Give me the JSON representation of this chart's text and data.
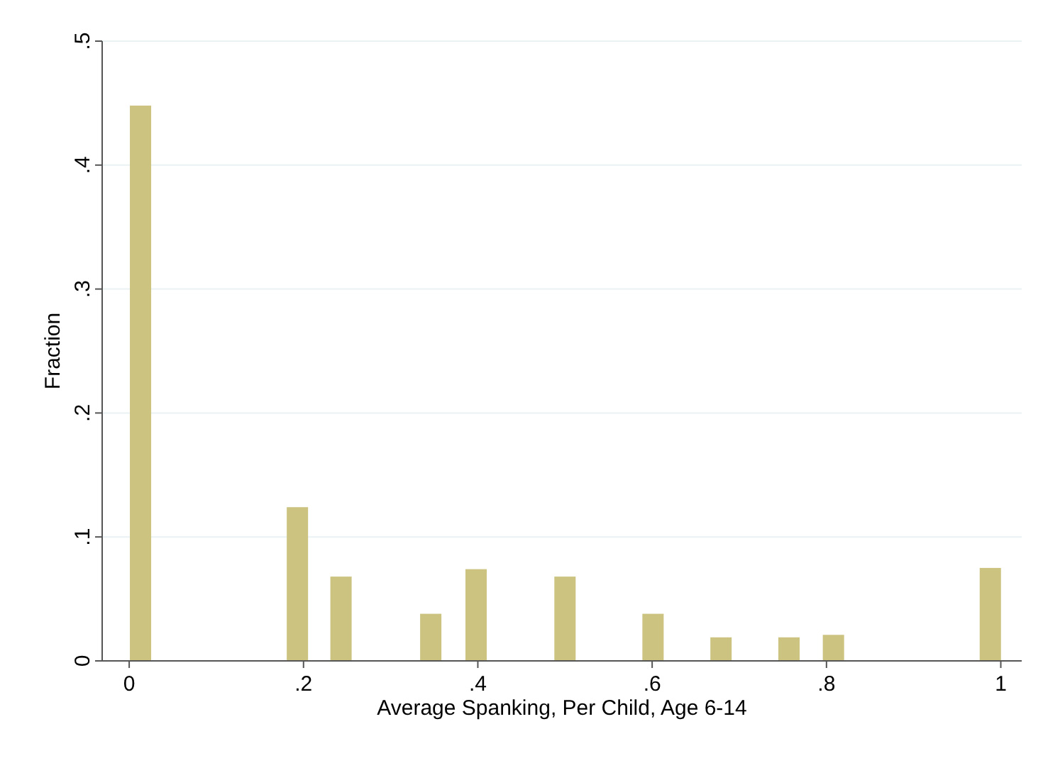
{
  "chart_data": {
    "type": "bar",
    "xlabel": "Average Spanking, Per Child, Age 6-14",
    "ylabel": "Fraction",
    "x": [
      0.013,
      0.193,
      0.243,
      0.346,
      0.398,
      0.5,
      0.601,
      0.679,
      0.757,
      0.808,
      0.988
    ],
    "values": [
      0.448,
      0.124,
      0.068,
      0.038,
      0.074,
      0.068,
      0.038,
      0.019,
      0.019,
      0.021,
      0.075
    ],
    "color": "#cbc37f",
    "xlim": [
      -0.031,
      1.024
    ],
    "xticks": [
      {
        "value": 0,
        "label": "0"
      },
      {
        "value": 0.2,
        "label": ".2"
      },
      {
        "value": 0.4,
        "label": ".4"
      },
      {
        "value": 0.6,
        "label": ".6"
      },
      {
        "value": 0.8,
        "label": ".8"
      },
      {
        "value": 1,
        "label": "1"
      }
    ],
    "ylim": [
      0,
      0.5
    ],
    "yticks": [
      {
        "value": 0,
        "label": "0"
      },
      {
        "value": 0.1,
        "label": ".1"
      },
      {
        "value": 0.2,
        "label": ".2"
      },
      {
        "value": 0.3,
        "label": ".3"
      },
      {
        "value": 0.4,
        "label": ".4"
      },
      {
        "value": 0.5,
        "label": ".5"
      }
    ],
    "grid": "y"
  }
}
